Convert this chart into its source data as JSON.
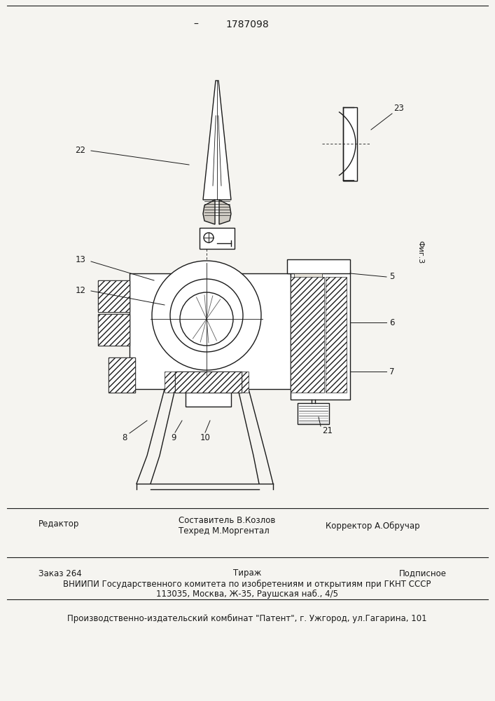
{
  "patent_number": "1787098",
  "fig_label": "Фиг.3",
  "bg_color": "#f5f4f0",
  "text_color": "#1a1a1a",
  "line_color": "#1a1a1a",
  "bottom_section": {
    "line1_editor": "Редактор",
    "line1_composer": "Составитель В.Козлов",
    "line1_techred": "Техред М.Моргентал",
    "line1_corrector": "Корректор А.Обручар",
    "line2_order": "Заказ 264",
    "line2_tirazh": "Тираж",
    "line2_podpisnoe": "Подписное",
    "line3": "ВНИИПИ Государственного комитета по изобретениям и открытиям при ГКНТ СССР",
    "line4": "113035, Москва, Ж-35, Раушская наб., 4/5",
    "line5": "Производственно-издательский комбинат \"Патент\", г. Ужгород, ул.Гагарина, 101"
  }
}
